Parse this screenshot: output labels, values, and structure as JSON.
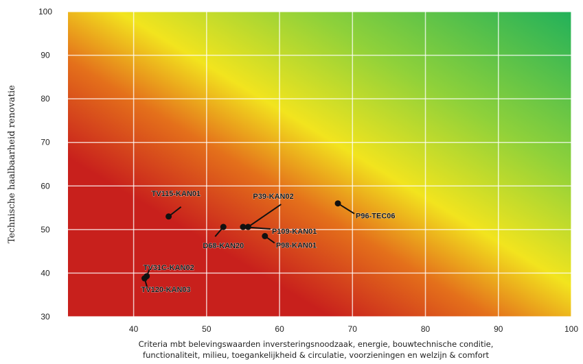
{
  "chart_data": {
    "type": "scatter",
    "title": "",
    "xlabel_lines": [
      "Criteria mbt belevingswaarden inversteringsnoodzaak, energie, bouwtechnische conditie,",
      "functionaliteit, milieu, toegankelijkheid & circulatie, voorzieningen en welzijn & comfort"
    ],
    "ylabel": "Technische haalbaarheid renovatie",
    "xlim": [
      31,
      100
    ],
    "ylim": [
      30,
      100
    ],
    "xticks": [
      40,
      50,
      60,
      70,
      80,
      90,
      100
    ],
    "yticks": [
      30,
      40,
      50,
      60,
      70,
      80,
      90,
      100
    ],
    "grid": true,
    "background": "diagonal gradient red (bottom-left) to yellow to green (top-right)",
    "colors": {
      "red": "#c8201c",
      "orange": "#e4701b",
      "yellow": "#f2e41e",
      "green": "#22b15a",
      "marker": "#111111"
    },
    "points": [
      {
        "label": "TV115-KAN01",
        "x": 44.8,
        "y": 53.0
      },
      {
        "label": "P39-KAN02",
        "x": 55.7,
        "y": 50.6
      },
      {
        "label": "D68-KAN20",
        "x": 52.3,
        "y": 50.6
      },
      {
        "label": "P109-KAN01",
        "x": 55.0,
        "y": 50.6
      },
      {
        "label": "P98-KAN01",
        "x": 58.0,
        "y": 48.5
      },
      {
        "label": "P96-TEC06",
        "x": 68.0,
        "y": 56.0
      },
      {
        "label": "TV31C-KAN02",
        "x": 41.8,
        "y": 39.3
      },
      {
        "label": "TV120-KAN03",
        "x": 41.5,
        "y": 38.8
      }
    ]
  }
}
